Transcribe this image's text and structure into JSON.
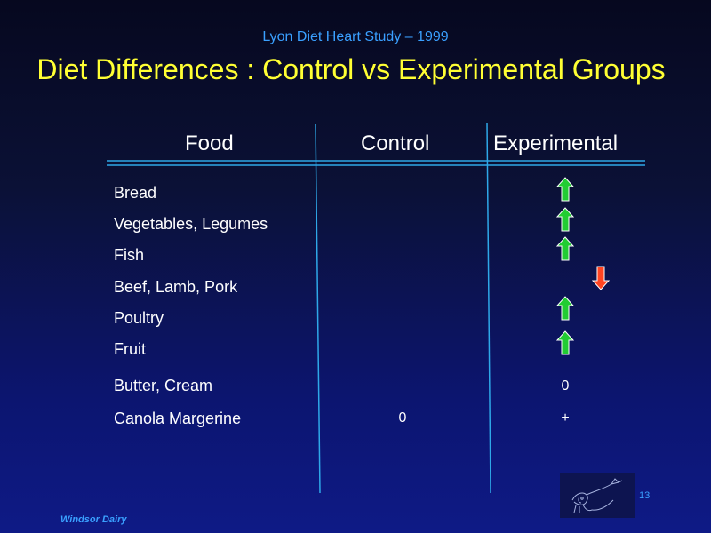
{
  "slide": {
    "subtitle": "Lyon Diet Heart Study – 1999",
    "title": "Diet Differences : Control vs Experimental Groups",
    "page_number": "13",
    "footer": "Windsor Dairy"
  },
  "table": {
    "headers": {
      "food": "Food",
      "control": "Control",
      "experimental": "Experimental"
    },
    "rows": [
      {
        "food": "Bread",
        "control": "",
        "experimental": "",
        "arrow": "up"
      },
      {
        "food": "Vegetables, Legumes",
        "control": "",
        "experimental": "",
        "arrow": "up"
      },
      {
        "food": "Fish",
        "control": "",
        "experimental": "",
        "arrow": "up"
      },
      {
        "food": "Beef, Lamb, Pork",
        "control": "",
        "experimental": "",
        "arrow": "down"
      },
      {
        "food": "Poultry",
        "control": "",
        "experimental": "",
        "arrow": "up"
      },
      {
        "food": "Fruit",
        "control": "",
        "experimental": "",
        "arrow": "up"
      },
      {
        "food": "Butter, Cream",
        "control": "",
        "experimental": "0",
        "arrow": ""
      },
      {
        "food": "Canola Margerine",
        "control": "0",
        "experimental": "+",
        "arrow": ""
      }
    ]
  },
  "colors": {
    "title": "#ffff33",
    "subtitle": "#3aa0ff",
    "grid_lines": "#2ea8e8",
    "arrow_up": "#22cc33",
    "arrow_down": "#ff4422"
  },
  "icons": {
    "up_arrow": "green-up-arrow-icon",
    "down_arrow": "red-down-arrow-icon",
    "logo": "cow-line-drawing-logo"
  }
}
